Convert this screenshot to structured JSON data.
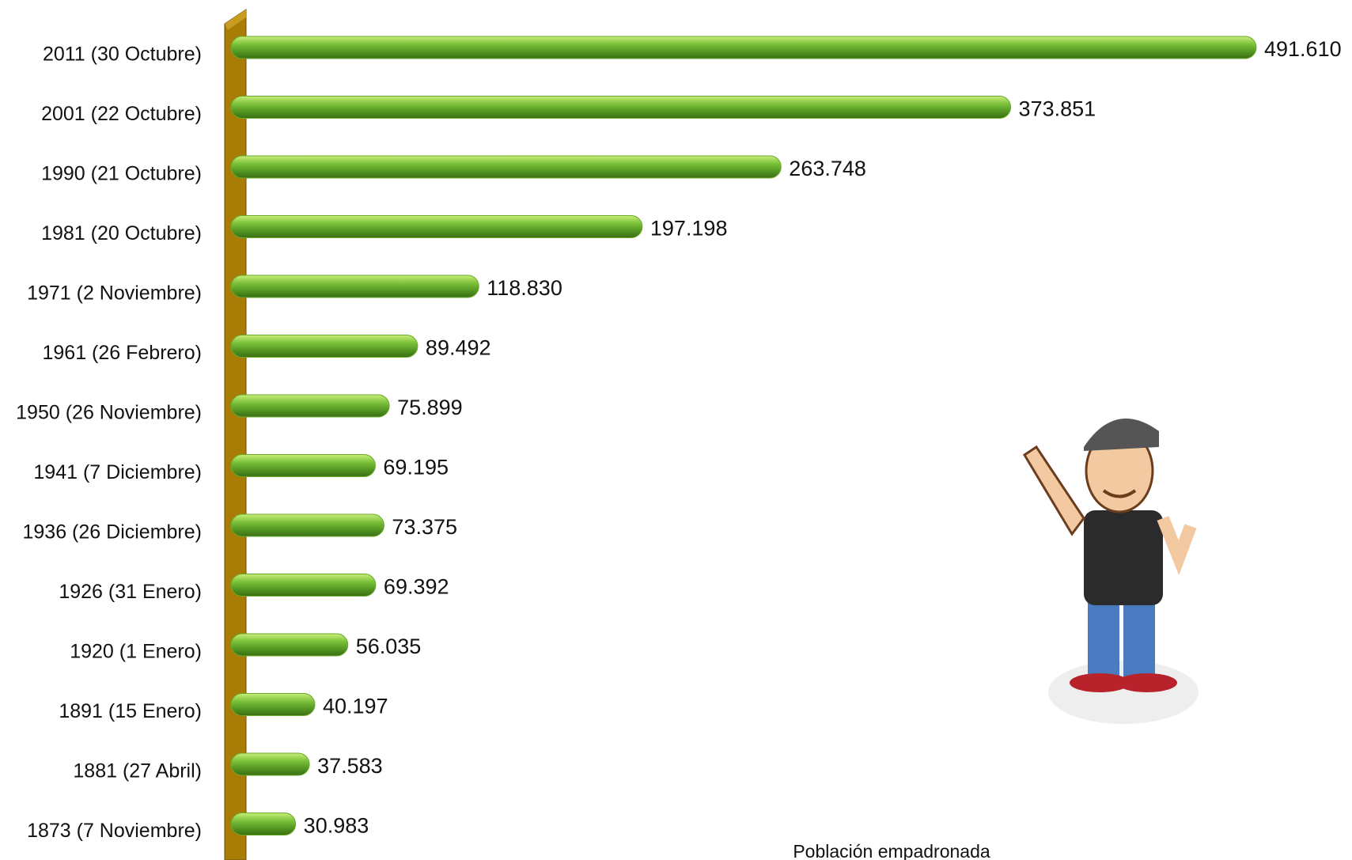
{
  "chart_data": {
    "type": "bar",
    "orientation": "horizontal",
    "x_label": "Población empadronada",
    "categories": [
      "2011 (30 Octubre)",
      "2001 (22 Octubre)",
      "1990 (21 Octubre)",
      "1981 (20 Octubre)",
      "1971 (2 Noviembre)",
      "1961 (26 Febrero)",
      "1950 (26 Noviembre)",
      "1941 (7 Diciembre)",
      "1936 (26 Diciembre)",
      "1926 (31 Enero)",
      "1920 (1 Enero)",
      "1891 (15 Enero)",
      "1881 (27 Abril)",
      "1873 (7 Noviembre)"
    ],
    "values": [
      491610,
      373851,
      263748,
      197198,
      118830,
      89492,
      75899,
      69195,
      73375,
      69392,
      56035,
      40197,
      37583,
      30983
    ],
    "value_labels": [
      "491.610",
      "373.851",
      "263.748",
      "197.198",
      "118.830",
      "89.492",
      "75.899",
      "69.195",
      "73.375",
      "69.392",
      "56.035",
      "40.197",
      "37.583",
      "30.983"
    ],
    "color": "#6aaa2a"
  }
}
